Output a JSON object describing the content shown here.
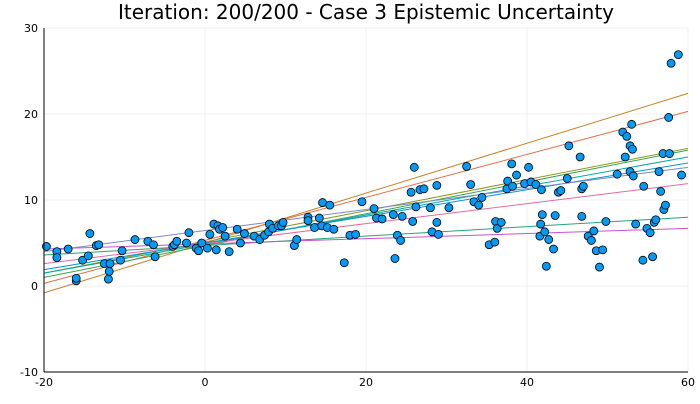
{
  "chart_data": {
    "type": "scatter",
    "title": "Iteration: 200/200 - Case 3 Epistemic Uncertainty",
    "xlabel": "",
    "ylabel": "",
    "xlim": [
      -20,
      60
    ],
    "ylim": [
      -10,
      30
    ],
    "xticks": [
      -20,
      0,
      20,
      40,
      60
    ],
    "yticks": [
      -10,
      0,
      10,
      20,
      30
    ],
    "xtick_labels": [
      "-20",
      "0",
      "20",
      "40",
      "60"
    ],
    "ytick_labels": [
      "-10",
      "0",
      "10",
      "20",
      "30"
    ],
    "grid": true,
    "legend": "none",
    "points_color": "#009af9",
    "points": [
      [
        -19.7,
        4.6
      ],
      [
        -18.4,
        4.0
      ],
      [
        -18.4,
        3.3
      ],
      [
        -17.0,
        4.3
      ],
      [
        -16.0,
        0.6
      ],
      [
        -16.0,
        0.9
      ],
      [
        -15.2,
        3.0
      ],
      [
        -14.5,
        3.5
      ],
      [
        -14.3,
        6.1
      ],
      [
        -13.5,
        4.7
      ],
      [
        -13.2,
        4.8
      ],
      [
        -12.5,
        2.6
      ],
      [
        -12.0,
        0.8
      ],
      [
        -11.9,
        1.7
      ],
      [
        -11.8,
        2.6
      ],
      [
        -10.3,
        4.1
      ],
      [
        -10.5,
        3.0
      ],
      [
        -8.7,
        5.4
      ],
      [
        -7.1,
        5.2
      ],
      [
        -6.4,
        4.8
      ],
      [
        -6.2,
        3.4
      ],
      [
        -4.0,
        4.6
      ],
      [
        -3.8,
        4.8
      ],
      [
        -3.5,
        5.2
      ],
      [
        -2.3,
        5.0
      ],
      [
        -2.0,
        6.2
      ],
      [
        -1.1,
        4.4
      ],
      [
        -0.8,
        4.1
      ],
      [
        -0.4,
        5.0
      ],
      [
        0.3,
        4.4
      ],
      [
        0.6,
        6.0
      ],
      [
        1.1,
        7.2
      ],
      [
        1.4,
        4.2
      ],
      [
        1.6,
        7.0
      ],
      [
        1.8,
        6.6
      ],
      [
        2.2,
        6.8
      ],
      [
        2.5,
        5.8
      ],
      [
        3.0,
        4.0
      ],
      [
        4.0,
        6.6
      ],
      [
        4.4,
        5.0
      ],
      [
        4.9,
        6.1
      ],
      [
        6.1,
        5.8
      ],
      [
        6.8,
        5.4
      ],
      [
        7.4,
        5.9
      ],
      [
        7.9,
        6.3
      ],
      [
        8.0,
        7.2
      ],
      [
        8.4,
        6.7
      ],
      [
        9.1,
        7.0
      ],
      [
        9.5,
        7.0
      ],
      [
        9.7,
        7.4
      ],
      [
        11.1,
        4.7
      ],
      [
        11.4,
        5.4
      ],
      [
        12.8,
        8.0
      ],
      [
        12.8,
        7.6
      ],
      [
        13.6,
        6.8
      ],
      [
        14.2,
        7.9
      ],
      [
        14.5,
        7.0
      ],
      [
        14.6,
        9.7
      ],
      [
        15.2,
        6.8
      ],
      [
        15.5,
        9.4
      ],
      [
        16.0,
        6.6
      ],
      [
        17.3,
        2.7
      ],
      [
        18.0,
        5.9
      ],
      [
        18.7,
        6.0
      ],
      [
        19.5,
        9.8
      ],
      [
        21.0,
        9.0
      ],
      [
        21.3,
        7.9
      ],
      [
        22.0,
        7.8
      ],
      [
        23.4,
        8.3
      ],
      [
        23.6,
        3.2
      ],
      [
        23.9,
        5.9
      ],
      [
        24.3,
        5.3
      ],
      [
        24.5,
        8.1
      ],
      [
        25.6,
        10.9
      ],
      [
        25.8,
        7.5
      ],
      [
        26.0,
        13.8
      ],
      [
        26.2,
        9.2
      ],
      [
        26.7,
        11.2
      ],
      [
        27.2,
        11.3
      ],
      [
        28.0,
        9.1
      ],
      [
        28.2,
        6.3
      ],
      [
        28.8,
        11.7
      ],
      [
        28.8,
        7.4
      ],
      [
        29.0,
        6.0
      ],
      [
        30.3,
        9.1
      ],
      [
        32.5,
        13.9
      ],
      [
        33.0,
        11.8
      ],
      [
        33.4,
        9.8
      ],
      [
        34.0,
        9.4
      ],
      [
        34.4,
        10.3
      ],
      [
        35.3,
        4.8
      ],
      [
        36.0,
        5.1
      ],
      [
        36.1,
        7.5
      ],
      [
        36.3,
        6.7
      ],
      [
        36.8,
        7.4
      ],
      [
        37.5,
        11.3
      ],
      [
        37.6,
        12.2
      ],
      [
        38.1,
        14.2
      ],
      [
        38.2,
        11.6
      ],
      [
        38.7,
        12.9
      ],
      [
        39.7,
        11.9
      ],
      [
        40.2,
        13.8
      ],
      [
        40.5,
        12.1
      ],
      [
        41.1,
        11.8
      ],
      [
        41.6,
        5.8
      ],
      [
        41.7,
        7.2
      ],
      [
        41.8,
        11.2
      ],
      [
        41.9,
        8.3
      ],
      [
        42.2,
        6.3
      ],
      [
        42.4,
        2.3
      ],
      [
        42.7,
        5.4
      ],
      [
        43.3,
        4.3
      ],
      [
        43.5,
        8.2
      ],
      [
        43.9,
        10.9
      ],
      [
        44.2,
        11.1
      ],
      [
        45.0,
        12.5
      ],
      [
        45.2,
        16.3
      ],
      [
        46.6,
        15.0
      ],
      [
        46.8,
        11.3
      ],
      [
        46.8,
        8.1
      ],
      [
        47.0,
        11.6
      ],
      [
        47.6,
        5.8
      ],
      [
        48.0,
        5.3
      ],
      [
        48.3,
        6.4
      ],
      [
        48.6,
        4.1
      ],
      [
        49.0,
        2.2
      ],
      [
        49.4,
        4.2
      ],
      [
        49.8,
        7.5
      ],
      [
        51.2,
        13.0
      ],
      [
        51.9,
        17.9
      ],
      [
        52.2,
        15.0
      ],
      [
        52.4,
        17.4
      ],
      [
        52.8,
        16.3
      ],
      [
        52.8,
        13.3
      ],
      [
        53.0,
        18.8
      ],
      [
        53.1,
        15.9
      ],
      [
        53.2,
        12.8
      ],
      [
        53.5,
        7.2
      ],
      [
        54.5,
        11.6
      ],
      [
        54.4,
        3.0
      ],
      [
        54.9,
        6.7
      ],
      [
        55.3,
        6.2
      ],
      [
        55.6,
        3.4
      ],
      [
        55.8,
        7.4
      ],
      [
        56.0,
        7.7
      ],
      [
        56.4,
        13.3
      ],
      [
        56.6,
        11.0
      ],
      [
        56.9,
        15.4
      ],
      [
        57.0,
        8.9
      ],
      [
        57.2,
        9.4
      ],
      [
        57.6,
        19.6
      ],
      [
        57.7,
        15.4
      ],
      [
        57.9,
        25.9
      ],
      [
        58.8,
        26.9
      ],
      [
        59.2,
        12.9
      ]
    ],
    "lines": [
      {
        "color": "#c68125",
        "y_at_xmin": -0.8,
        "y_at_xmax": 22.4
      },
      {
        "color": "#e26f46",
        "y_at_xmin": 0.3,
        "y_at_xmax": 20.3
      },
      {
        "color": "#3da44d",
        "y_at_xmin": 1.0,
        "y_at_xmax": 15.8
      },
      {
        "color": "#8e971e",
        "y_at_xmin": 1.5,
        "y_at_xmax": 16.0
      },
      {
        "color": "#00a9ad",
        "y_at_xmin": 1.5,
        "y_at_xmax": 15.0
      },
      {
        "color": "#0096d6",
        "y_at_xmin": 1.9,
        "y_at_xmax": 14.3
      },
      {
        "color": "#e36a9e",
        "y_at_xmin": 2.6,
        "y_at_xmax": 11.9
      },
      {
        "color": "#24a678",
        "y_at_xmin": 3.6,
        "y_at_xmax": 8.0
      },
      {
        "color": "#c455c8",
        "y_at_xmin": 4.3,
        "y_at_xmax": 6.7
      },
      {
        "color": "#7b89c9",
        "y_at_xmin": 4.0,
        "y_at_xmax": 13.8
      }
    ]
  }
}
